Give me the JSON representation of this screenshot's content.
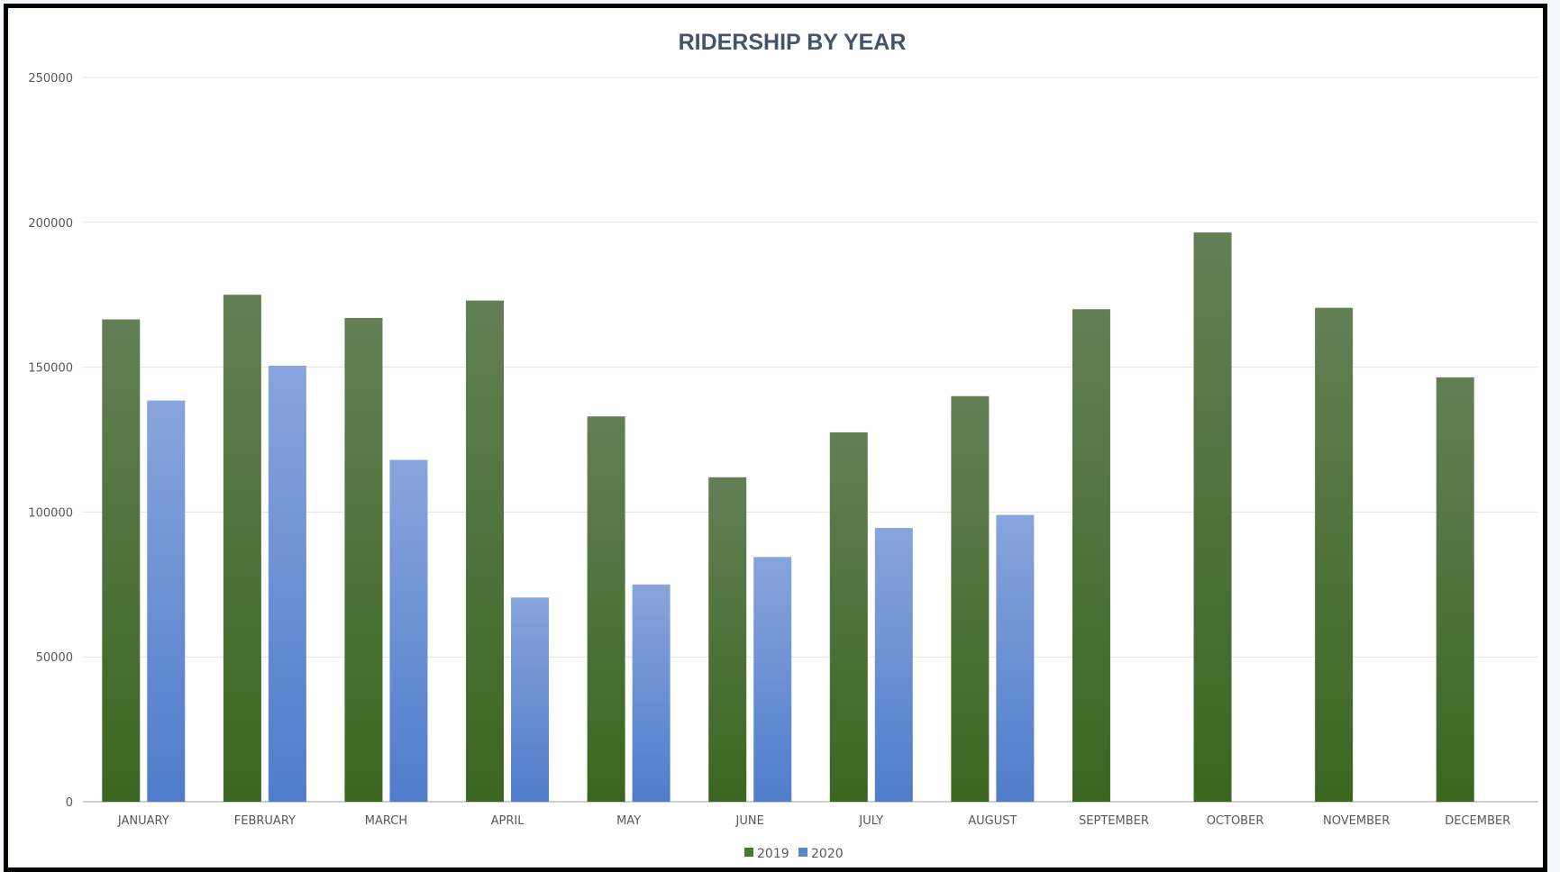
{
  "chart_data": {
    "type": "bar",
    "title": "RIDERSHIP BY YEAR",
    "xlabel": "",
    "ylabel": "",
    "ylim": [
      0,
      250000
    ],
    "yticks": [
      "0",
      "50000",
      "100000",
      "150000",
      "200000",
      "250000"
    ],
    "grid": true,
    "legend_position": "bottom",
    "categories": [
      "JANUARY",
      "FEBRUARY",
      "MARCH",
      "APRIL",
      "MAY",
      "JUNE",
      "JULY",
      "AUGUST",
      "SEPTEMBER",
      "OCTOBER",
      "NOVEMBER",
      "DECEMBER"
    ],
    "series": [
      {
        "name": "2019",
        "color": "#4a7a2e",
        "gradient_top": "#637f55",
        "gradient_bottom": "#3b6620",
        "values": [
          166500,
          175000,
          167000,
          173000,
          133000,
          112000,
          127500,
          140000,
          170000,
          196500,
          170500,
          146500
        ]
      },
      {
        "name": "2020",
        "color": "#5b86d0",
        "gradient_top": "#88a5dc",
        "gradient_bottom": "#4f7ccb",
        "values": [
          138500,
          150500,
          118000,
          70500,
          75000,
          84500,
          94500,
          99000,
          null,
          null,
          null,
          null
        ]
      }
    ]
  }
}
